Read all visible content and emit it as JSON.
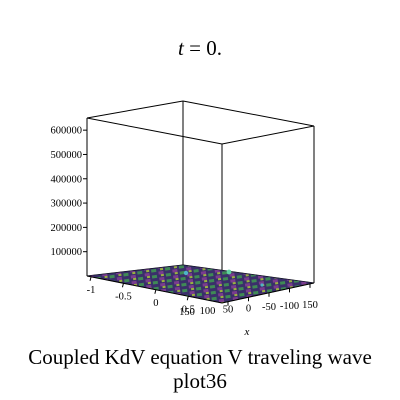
{
  "chart_data": {
    "type": "surface3d",
    "title_var": "t",
    "title_eq": " = 0.",
    "z_ticks": [
      "100000",
      "200000",
      "300000",
      "400000",
      "500000",
      "600000"
    ],
    "z_tick_values": [
      100000,
      200000,
      300000,
      400000,
      500000,
      600000
    ],
    "zlim": [
      0,
      650000
    ],
    "left_axis_ticks": [
      "-1",
      "-0.5",
      "0",
      "0.5"
    ],
    "right_axis_ticks": [
      "150",
      "100",
      "50",
      "0",
      "-50",
      "-100",
      "150"
    ],
    "xlabel": "x",
    "surface": "near-flat oscillating wave surface",
    "surface_colors": [
      "#2e3a6e",
      "#3f8a55",
      "#7a3c8e",
      "#9ab23f",
      "#4fb3c6",
      "#5a2e75"
    ]
  },
  "caption": {
    "line1": "Coupled KdV equation V traveling wave",
    "line2": "plot36"
  }
}
